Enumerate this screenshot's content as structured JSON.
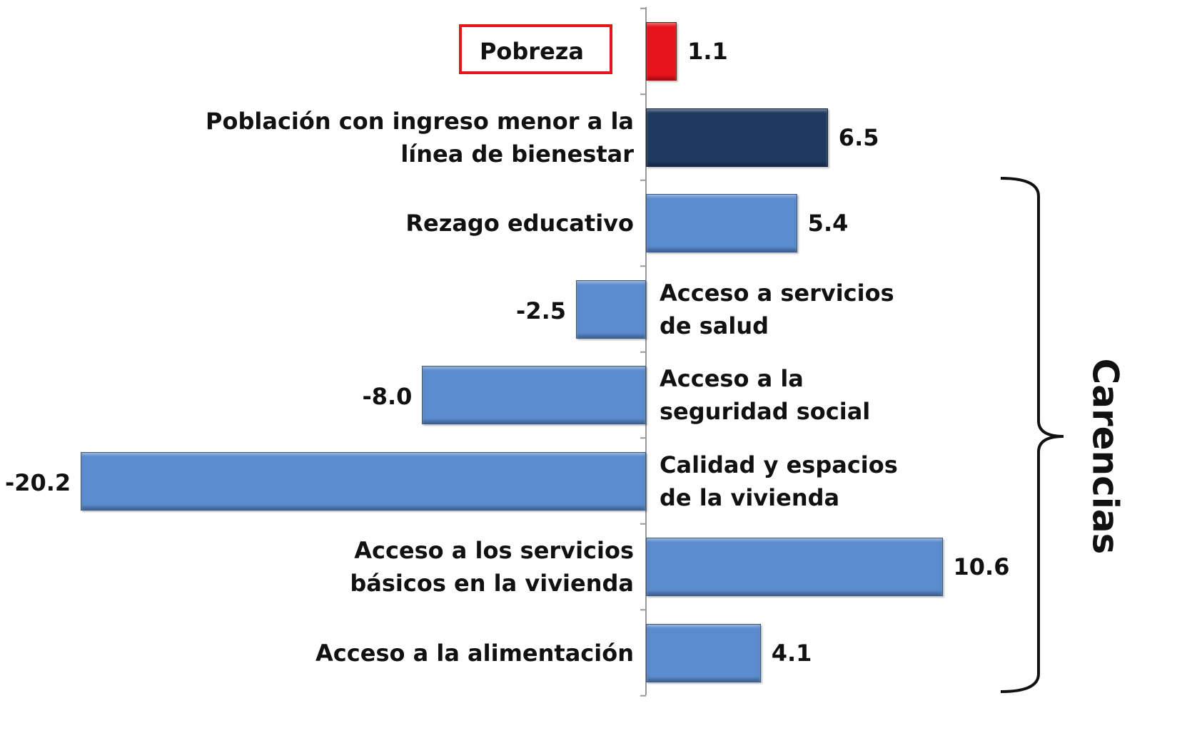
{
  "chart_data": {
    "type": "bar",
    "orientation": "horizontal",
    "categories": [
      "Pobreza",
      "Población con ingreso menor a la\nlínea de bienestar",
      "Rezago educativo",
      "Acceso a servicios\nde salud",
      "Acceso a  la\nseguridad social",
      "Calidad y espacios\nde la vivienda",
      "Acceso a los servicios\nbásicos en la vivienda",
      "Acceso a la alimentación"
    ],
    "values": [
      1.1,
      6.5,
      5.4,
      -2.5,
      -8.0,
      -20.2,
      10.6,
      4.1
    ],
    "value_labels": [
      "1.1",
      "6.5",
      "5.4",
      "-2.5",
      "-8.0",
      "-20.2",
      "10.6",
      "4.1"
    ],
    "colors": [
      "#e8141b",
      "#1f3a60",
      "#5b8ccf",
      "#5b8ccf",
      "#5b8ccf",
      "#5b8ccf",
      "#5b8ccf",
      "#5b8ccf"
    ],
    "annotation": "Carencias"
  }
}
